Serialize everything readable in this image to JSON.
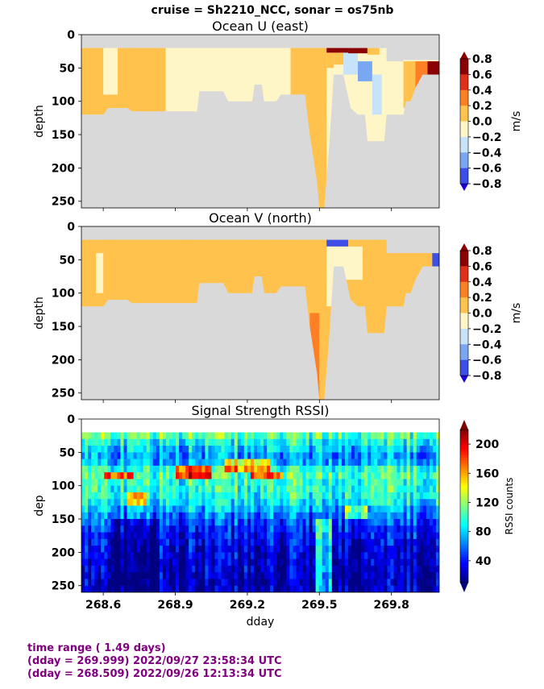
{
  "suptitle": "cruise = Sh2210_NCC,  sonar = os75nb",
  "footer": {
    "line1": "time range ( 1.49 days)",
    "line2": "(dday = 269.999) 2022/09/27 23:58:34 UTC",
    "line3": "(dday = 268.509) 2022/09/26 12:13:34 UTC"
  },
  "colors": {
    "nodata": "#d9d9d9",
    "velocity_levels": [
      "#1a00d6",
      "#3d4fe6",
      "#7aa7f2",
      "#c6e3fa",
      "#fff6c8",
      "#ffc24d",
      "#ff7f24",
      "#e0301a",
      "#8b0000"
    ],
    "rssi_scale": "jet"
  },
  "chart_data": [
    {
      "type": "heatmap",
      "title": "Ocean U (east)",
      "xlabel": "",
      "ylabel": "depth",
      "xlim": [
        268.509,
        269.999
      ],
      "ylim": [
        260,
        0
      ],
      "yticks": [
        0,
        50,
        100,
        150,
        200,
        250
      ],
      "xticks": [
        268.6,
        268.9,
        269.2,
        269.5,
        269.8
      ],
      "colorbar": {
        "label": "m/s",
        "ticks": [
          "0.8",
          "0.6",
          "0.4",
          "0.2",
          "0.0",
          "−0.2",
          "−0.4",
          "−0.6",
          "−0.8"
        ],
        "range": [
          -0.8,
          0.8
        ]
      },
      "depth_top": 20,
      "bottom_depth": [
        [
          268.509,
          120
        ],
        [
          268.6,
          120
        ],
        [
          268.62,
          110
        ],
        [
          268.7,
          110
        ],
        [
          268.72,
          115
        ],
        [
          268.99,
          115
        ],
        [
          269.0,
          85
        ],
        [
          269.1,
          85
        ],
        [
          269.12,
          100
        ],
        [
          269.22,
          100
        ],
        [
          269.23,
          75
        ],
        [
          269.26,
          75
        ],
        [
          269.27,
          100
        ],
        [
          269.32,
          100
        ],
        [
          269.34,
          90
        ],
        [
          269.44,
          90
        ],
        [
          269.46,
          150
        ],
        [
          269.49,
          220
        ],
        [
          269.5,
          260
        ],
        [
          269.52,
          260
        ],
        [
          269.54,
          170
        ],
        [
          269.56,
          60
        ],
        [
          269.6,
          60
        ],
        [
          269.63,
          110
        ],
        [
          269.66,
          120
        ],
        [
          269.69,
          120
        ],
        [
          269.7,
          160
        ],
        [
          269.77,
          160
        ],
        [
          269.78,
          120
        ],
        [
          269.85,
          120
        ],
        [
          269.86,
          100
        ],
        [
          269.88,
          100
        ],
        [
          269.9,
          80
        ],
        [
          269.93,
          60
        ],
        [
          269.999,
          60
        ]
      ],
      "surface_gap": [
        [
          269.78,
          269.85,
          40
        ],
        [
          269.85,
          269.999,
          38
        ]
      ],
      "patches": [
        {
          "x": [
            268.509,
            269.999
          ],
          "d": [
            20,
            260
          ],
          "v": -0.1
        },
        {
          "x": [
            268.509,
            268.86
          ],
          "d": [
            20,
            120
          ],
          "v": 0.1
        },
        {
          "x": [
            268.6,
            268.66
          ],
          "d": [
            20,
            90
          ],
          "v": -0.1
        },
        {
          "x": [
            268.7,
            268.73
          ],
          "d": [
            20,
            60
          ],
          "v": 0.1
        },
        {
          "x": [
            269.0,
            269.44
          ],
          "d": [
            20,
            60
          ],
          "v": -0.1
        },
        {
          "x": [
            269.38,
            269.44
          ],
          "d": [
            20,
            90
          ],
          "v": 0.3
        },
        {
          "x": [
            269.44,
            269.53
          ],
          "d": [
            20,
            260
          ],
          "v": 0.3
        },
        {
          "x": [
            269.47,
            269.51
          ],
          "d": [
            100,
            260
          ],
          "v": 0.1
        },
        {
          "x": [
            269.53,
            269.56
          ],
          "d": [
            20,
            50
          ],
          "v": 0.3
        },
        {
          "x": [
            269.56,
            269.6
          ],
          "d": [
            20,
            45
          ],
          "v": 0.3
        },
        {
          "x": [
            269.6,
            269.66
          ],
          "d": [
            20,
            60
          ],
          "v": -0.3
        },
        {
          "x": [
            269.66,
            269.72
          ],
          "d": [
            40,
            70
          ],
          "v": -0.5
        },
        {
          "x": [
            269.72,
            269.76
          ],
          "d": [
            60,
            120
          ],
          "v": -0.3
        },
        {
          "x": [
            269.53,
            269.62
          ],
          "d": [
            20,
            27
          ],
          "v": 0.9
        },
        {
          "x": [
            269.62,
            269.7
          ],
          "d": [
            20,
            28
          ],
          "v": 0.7
        },
        {
          "x": [
            269.7,
            269.75
          ],
          "d": [
            20,
            30
          ],
          "v": 0.3
        },
        {
          "x": [
            269.85,
            269.9
          ],
          "d": [
            40,
            110
          ],
          "v": 0.3
        },
        {
          "x": [
            269.9,
            269.95
          ],
          "d": [
            40,
            80
          ],
          "v": 0.5
        },
        {
          "x": [
            269.95,
            269.999
          ],
          "d": [
            40,
            60
          ],
          "v": 0.7
        }
      ]
    },
    {
      "type": "heatmap",
      "title": "Ocean V (north)",
      "xlabel": "",
      "ylabel": "depth",
      "xlim": [
        268.509,
        269.999
      ],
      "ylim": [
        260,
        0
      ],
      "yticks": [
        0,
        50,
        100,
        150,
        200,
        250
      ],
      "xticks": [
        268.6,
        268.9,
        269.2,
        269.5,
        269.8
      ],
      "colorbar": {
        "label": "m/s",
        "ticks": [
          "0.8",
          "0.6",
          "0.4",
          "0.2",
          "0.0",
          "−0.2",
          "−0.4",
          "−0.6",
          "−0.8"
        ],
        "range": [
          -0.8,
          0.8
        ]
      },
      "depth_top": 20,
      "bottom_depth": [
        [
          268.509,
          120
        ],
        [
          268.6,
          120
        ],
        [
          268.62,
          110
        ],
        [
          268.7,
          110
        ],
        [
          268.72,
          115
        ],
        [
          268.99,
          115
        ],
        [
          269.0,
          85
        ],
        [
          269.1,
          85
        ],
        [
          269.12,
          100
        ],
        [
          269.22,
          100
        ],
        [
          269.23,
          75
        ],
        [
          269.26,
          75
        ],
        [
          269.27,
          100
        ],
        [
          269.32,
          100
        ],
        [
          269.34,
          90
        ],
        [
          269.44,
          90
        ],
        [
          269.46,
          150
        ],
        [
          269.49,
          220
        ],
        [
          269.5,
          260
        ],
        [
          269.52,
          260
        ],
        [
          269.54,
          170
        ],
        [
          269.56,
          60
        ],
        [
          269.6,
          60
        ],
        [
          269.63,
          110
        ],
        [
          269.66,
          120
        ],
        [
          269.69,
          120
        ],
        [
          269.7,
          160
        ],
        [
          269.77,
          160
        ],
        [
          269.78,
          120
        ],
        [
          269.85,
          120
        ],
        [
          269.86,
          100
        ],
        [
          269.88,
          100
        ],
        [
          269.9,
          80
        ],
        [
          269.93,
          60
        ],
        [
          269.999,
          60
        ]
      ],
      "surface_gap": [
        [
          269.78,
          269.999,
          40
        ]
      ],
      "patches": [
        {
          "x": [
            268.509,
            269.999
          ],
          "d": [
            20,
            260
          ],
          "v": 0.1
        },
        {
          "x": [
            268.509,
            268.55
          ],
          "d": [
            20,
            40
          ],
          "v": 0.3
        },
        {
          "x": [
            268.62,
            268.95
          ],
          "d": [
            20,
            30
          ],
          "v": 0.3
        },
        {
          "x": [
            268.82,
            268.86
          ],
          "d": [
            20,
            70
          ],
          "v": 0.3
        },
        {
          "x": [
            268.57,
            268.6
          ],
          "d": [
            40,
            100
          ],
          "v": -0.1
        },
        {
          "x": [
            269.0,
            269.2
          ],
          "d": [
            20,
            28
          ],
          "v": 0.3
        },
        {
          "x": [
            269.25,
            269.32
          ],
          "d": [
            20,
            55
          ],
          "v": 0.3
        },
        {
          "x": [
            269.4,
            269.53
          ],
          "d": [
            20,
            260
          ],
          "v": 0.3
        },
        {
          "x": [
            269.46,
            269.5
          ],
          "d": [
            130,
            260
          ],
          "v": 0.5
        },
        {
          "x": [
            269.53,
            269.68
          ],
          "d": [
            30,
            120
          ],
          "v": -0.1
        },
        {
          "x": [
            269.53,
            269.62
          ],
          "d": [
            20,
            30
          ],
          "v": -0.7
        },
        {
          "x": [
            269.62,
            269.68
          ],
          "d": [
            20,
            30
          ],
          "v": 0.3
        },
        {
          "x": [
            269.68,
            269.76
          ],
          "d": [
            20,
            50
          ],
          "v": 0.3
        },
        {
          "x": [
            269.6,
            269.72
          ],
          "d": [
            80,
            160
          ],
          "v": 0.3
        },
        {
          "x": [
            269.8,
            269.97
          ],
          "d": [
            40,
            80
          ],
          "v": 0.1
        },
        {
          "x": [
            269.97,
            269.999
          ],
          "d": [
            40,
            60
          ],
          "v": -0.7
        }
      ]
    },
    {
      "type": "heatmap",
      "title": "Signal Strength RSSI)",
      "xlabel": "dday",
      "ylabel": "dep",
      "xlim": [
        268.509,
        269.999
      ],
      "ylim": [
        260,
        0
      ],
      "yticks": [
        0,
        50,
        100,
        150,
        200,
        250
      ],
      "xticks": [
        268.6,
        268.9,
        269.2,
        269.5,
        269.8
      ],
      "xticklabels": [
        "268.6",
        "268.9",
        "269.2",
        "269.5",
        "269.8"
      ],
      "colorbar": {
        "label": "RSSI counts",
        "ticks": [
          "200",
          "160",
          "120",
          "80",
          "40"
        ],
        "range": [
          10,
          220
        ]
      },
      "depth_top": 20,
      "depth_bottom": 260,
      "depth_profile": [
        [
          20,
          115
        ],
        [
          30,
          100
        ],
        [
          40,
          85
        ],
        [
          50,
          70
        ],
        [
          60,
          65
        ],
        [
          70,
          80
        ],
        [
          80,
          110
        ],
        [
          90,
          100
        ],
        [
          100,
          95
        ],
        [
          110,
          100
        ],
        [
          120,
          90
        ],
        [
          130,
          80
        ],
        [
          140,
          65
        ],
        [
          150,
          55
        ],
        [
          160,
          45
        ],
        [
          170,
          40
        ],
        [
          180,
          35
        ],
        [
          190,
          30
        ],
        [
          200,
          28
        ],
        [
          210,
          25
        ],
        [
          220,
          25
        ],
        [
          230,
          22
        ],
        [
          240,
          22
        ],
        [
          250,
          20
        ],
        [
          260,
          20
        ]
      ],
      "features": [
        {
          "x": [
            268.6,
            268.72
          ],
          "d": [
            78,
            90
          ],
          "add": 80
        },
        {
          "x": [
            268.9,
            269.05
          ],
          "d": [
            75,
            88
          ],
          "add": 90
        },
        {
          "x": [
            269.1,
            269.3
          ],
          "d": [
            60,
            75
          ],
          "add": 70
        },
        {
          "x": [
            269.22,
            269.35
          ],
          "d": [
            78,
            92
          ],
          "add": 70
        },
        {
          "x": [
            268.7,
            268.78
          ],
          "d": [
            115,
            130
          ],
          "add": 60
        },
        {
          "x": [
            269.6,
            269.7
          ],
          "d": [
            130,
            150
          ],
          "add": 50
        },
        {
          "x": [
            269.48,
            269.55
          ],
          "d": [
            150,
            260
          ],
          "add": 55
        },
        {
          "x": [
            268.65,
            268.82
          ],
          "d": [
            150,
            260
          ],
          "add": -20
        }
      ]
    }
  ]
}
